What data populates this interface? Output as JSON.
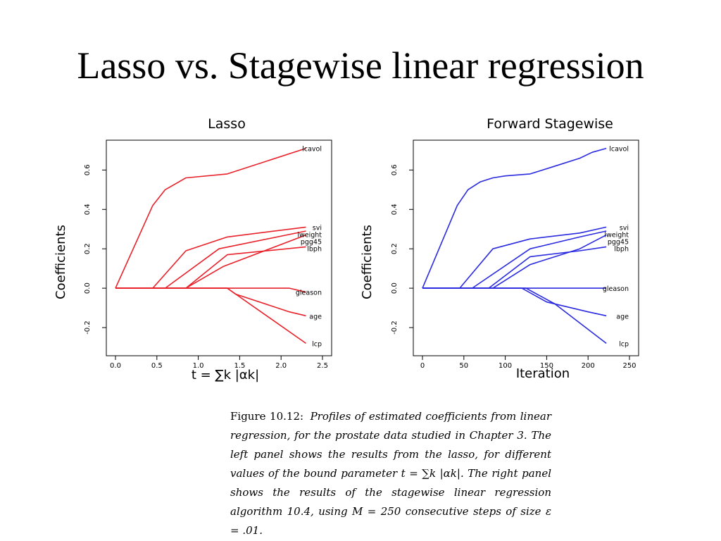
{
  "slide": {
    "title": "Lasso vs. Stagewise linear regression"
  },
  "caption": {
    "label": "Figure 10.12:",
    "text": "Profiles of estimated coefficients from linear regression, for the prostate data studied in Chapter 3. The left panel shows the results from the lasso, for different values of the bound parameter t = ∑k |αk|. The right panel shows the results of the stagewise linear regression algorithm 10.4, using M = 250 consecutive steps of size ε = .01."
  },
  "chart_data": [
    {
      "type": "line",
      "title": "Lasso",
      "xlabel": "t = ∑k |αk|",
      "ylabel": "Coefficients",
      "xlim": [
        0.0,
        2.5
      ],
      "ylim": [
        -0.3,
        0.73
      ],
      "xticks": [
        "0.0",
        "0.5",
        "1.0",
        "1.5",
        "2.0",
        "2.5"
      ],
      "yticks": [
        "-0.2",
        "0.0",
        "0.2",
        "0.4",
        "0.6"
      ],
      "color": "#e8212a",
      "series": [
        {
          "name": "lcavol",
          "x": [
            0.0,
            0.45,
            0.6,
            0.85,
            1.35,
            2.3
          ],
          "y": [
            0.0,
            0.42,
            0.5,
            0.56,
            0.58,
            0.71
          ]
        },
        {
          "name": "svi",
          "x": [
            0.0,
            0.45,
            0.85,
            1.35,
            2.3
          ],
          "y": [
            0.0,
            0.0,
            0.19,
            0.26,
            0.31
          ]
        },
        {
          "name": "lweight",
          "x": [
            0.0,
            0.6,
            1.25,
            2.3
          ],
          "y": [
            0.0,
            0.0,
            0.2,
            0.29
          ]
        },
        {
          "name": "pgg45",
          "x": [
            0.0,
            0.85,
            1.3,
            2.3
          ],
          "y": [
            0.0,
            0.0,
            0.11,
            0.27
          ]
        },
        {
          "name": "lbph",
          "x": [
            0.0,
            0.85,
            1.35,
            2.3
          ],
          "y": [
            0.0,
            0.0,
            0.17,
            0.21
          ]
        },
        {
          "name": "gleason",
          "x": [
            0.0,
            2.1,
            2.3
          ],
          "y": [
            0.0,
            0.0,
            -0.02
          ]
        },
        {
          "name": "age",
          "x": [
            0.0,
            1.35,
            1.45,
            2.1,
            2.3
          ],
          "y": [
            0.0,
            0.0,
            -0.03,
            -0.12,
            -0.14
          ]
        },
        {
          "name": "lcp",
          "x": [
            0.0,
            1.35,
            2.3
          ],
          "y": [
            0.0,
            0.0,
            -0.28
          ]
        }
      ]
    },
    {
      "type": "line",
      "title": "Forward Stagewise",
      "xlabel": "Iteration",
      "ylabel": "Coefficients",
      "xlim": [
        0,
        250
      ],
      "ylim": [
        -0.3,
        0.73
      ],
      "xticks": [
        "0",
        "50",
        "100",
        "150",
        "200",
        "250"
      ],
      "yticks": [
        "-0.2",
        "0.0",
        "0.2",
        "0.4",
        "0.6"
      ],
      "color": "#2a2ae0",
      "series": [
        {
          "name": "lcavol",
          "x": [
            0,
            42,
            55,
            70,
            85,
            100,
            130,
            160,
            190,
            205,
            222
          ],
          "y": [
            0.0,
            0.42,
            0.5,
            0.54,
            0.56,
            0.57,
            0.58,
            0.62,
            0.66,
            0.69,
            0.71
          ]
        },
        {
          "name": "svi",
          "x": [
            0,
            45,
            85,
            130,
            190,
            222
          ],
          "y": [
            0.0,
            0.0,
            0.2,
            0.25,
            0.28,
            0.31
          ]
        },
        {
          "name": "lweight",
          "x": [
            0,
            60,
            130,
            190,
            222
          ],
          "y": [
            0.0,
            0.0,
            0.2,
            0.26,
            0.29
          ]
        },
        {
          "name": "pgg45",
          "x": [
            0,
            85,
            130,
            190,
            222
          ],
          "y": [
            0.0,
            0.0,
            0.12,
            0.2,
            0.27
          ]
        },
        {
          "name": "lbph",
          "x": [
            0,
            80,
            130,
            190,
            222
          ],
          "y": [
            0.0,
            0.0,
            0.16,
            0.19,
            0.21
          ]
        },
        {
          "name": "gleason",
          "x": [
            0,
            222
          ],
          "y": [
            0.0,
            0.0
          ]
        },
        {
          "name": "age",
          "x": [
            0,
            120,
            150,
            200,
            222
          ],
          "y": [
            0.0,
            0.0,
            -0.07,
            -0.12,
            -0.14
          ]
        },
        {
          "name": "lcp",
          "x": [
            0,
            125,
            160,
            222
          ],
          "y": [
            0.0,
            0.0,
            -0.08,
            -0.28
          ]
        }
      ]
    }
  ]
}
